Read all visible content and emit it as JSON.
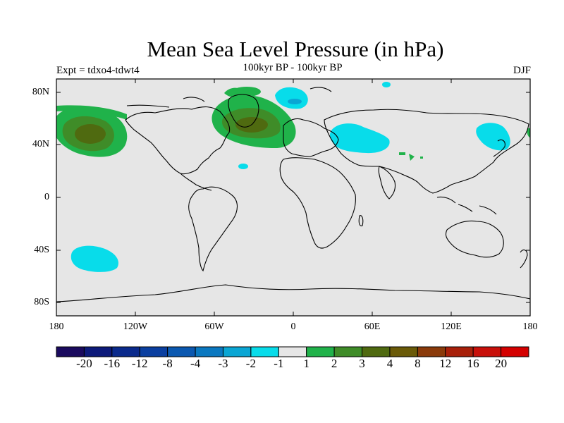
{
  "title": "Mean Sea Level Pressure (in hPa)",
  "experiment": "Expt = tdxo4-tdwt4",
  "subtitle": "100kyr BP - 100kyr BP",
  "season": "DJF",
  "x_axis": {
    "ticks": [
      "180",
      "120W",
      "60W",
      "0",
      "60E",
      "120E",
      "180"
    ]
  },
  "y_axis": {
    "ticks": [
      "80N",
      "40N",
      "0",
      "40S",
      "80S"
    ]
  },
  "colorbar": {
    "labels": [
      "-20",
      "-16",
      "-12",
      "-8",
      "-4",
      "-3",
      "-2",
      "-1",
      "1",
      "2",
      "3",
      "4",
      "8",
      "12",
      "16",
      "20"
    ],
    "colors": [
      "#1a0a5e",
      "#0d1a7a",
      "#0a2a8c",
      "#0a3fa0",
      "#0b58b0",
      "#0a78c0",
      "#0aa6d4",
      "#08dcea",
      "#e6e6e6",
      "#20b24a",
      "#3f8c28",
      "#4f6a10",
      "#6a5a08",
      "#8a3a0a",
      "#a8200a",
      "#c8100a",
      "#d40000"
    ]
  },
  "map": {
    "background": "#e6e6e6",
    "anomalies": [
      {
        "region": "North Pacific",
        "values": "positive"
      },
      {
        "region": "North Atlantic",
        "values": "positive"
      },
      {
        "region": "Southeast Pacific",
        "values": "negative"
      },
      {
        "region": "Arctic / Greenland Sea",
        "values": "negative"
      },
      {
        "region": "Eurasia",
        "values": "negative"
      },
      {
        "region": "Northwest Pacific",
        "values": "negative"
      }
    ]
  }
}
